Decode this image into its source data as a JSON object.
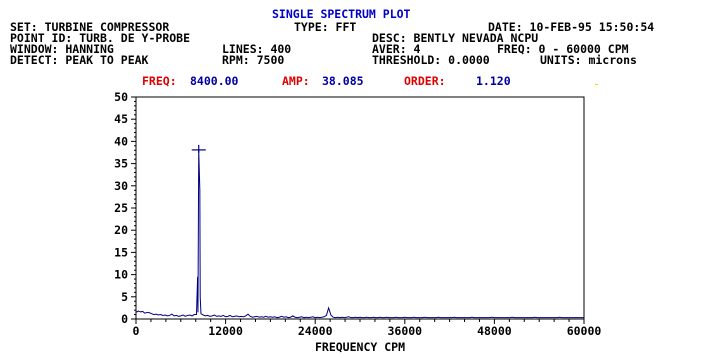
{
  "title": "SINGLE SPECTRUM PLOT",
  "header": {
    "set": "SET: TURBINE COMPRESSOR",
    "type": "TYPE: FFT",
    "date": "DATE: 10-FEB-95 15:50:54",
    "point_id": "POINT ID: TURB. DE Y-PROBE",
    "desc": "DESC: BENTLY NEVADA NCPU",
    "window": "WINDOW: HANNING",
    "lines": "LINES: 400",
    "aver": "AVER: 4",
    "freq_range": "FREQ: 0 - 60000 CPM",
    "detect": "DETECT: PEAK TO PEAK",
    "rpm": "RPM: 7500",
    "threshold": "THRESHOLD: 0.0000",
    "units": "UNITS: microns"
  },
  "cursor": {
    "freq_label": "FREQ:",
    "freq_value": "8400.00",
    "amp_label": "AMP:",
    "amp_value": "38.085",
    "order_label": "ORDER:",
    "order_value": "1.120"
  },
  "colors": {
    "title": "#0000c8",
    "trace": "#000080",
    "label_red": "#e00000",
    "value_blue": "#0000a0"
  },
  "chart_data": {
    "type": "line",
    "xlabel": "FREQUENCY CPM",
    "ylabel": "",
    "xlim": [
      0,
      60000
    ],
    "ylim": [
      0,
      50
    ],
    "x_ticks": [
      "0",
      "12000",
      "24000",
      "36000",
      "48000",
      "60000"
    ],
    "y_ticks": [
      "0",
      "5",
      "10",
      "15",
      "20",
      "25",
      "30",
      "35",
      "40",
      "45",
      "50"
    ],
    "grid": false,
    "cursor_marker": {
      "x": 8400,
      "y": 38.085
    },
    "series": [
      {
        "points": [
          [
            0,
            1.5
          ],
          [
            300,
            1.8
          ],
          [
            600,
            1.6
          ],
          [
            900,
            1.7
          ],
          [
            1200,
            1.3
          ],
          [
            1500,
            1.5
          ],
          [
            1800,
            1.4
          ],
          [
            2100,
            1.2
          ],
          [
            2400,
            1.0
          ],
          [
            2700,
            1.1
          ],
          [
            3000,
            0.9
          ],
          [
            3300,
            1.0
          ],
          [
            3600,
            0.8
          ],
          [
            3900,
            0.9
          ],
          [
            4200,
            0.7
          ],
          [
            4500,
            0.8
          ],
          [
            4800,
            1.1
          ],
          [
            5100,
            0.7
          ],
          [
            5400,
            0.8
          ],
          [
            5700,
            0.6
          ],
          [
            6000,
            0.7
          ],
          [
            6300,
            0.9
          ],
          [
            6600,
            0.6
          ],
          [
            6900,
            0.8
          ],
          [
            7200,
            0.9
          ],
          [
            7500,
            0.7
          ],
          [
            7800,
            1.0
          ],
          [
            8100,
            1.0
          ],
          [
            8250,
            9.5
          ],
          [
            8300,
            1.5
          ],
          [
            8400,
            38.085
          ],
          [
            8550,
            29
          ],
          [
            8600,
            5
          ],
          [
            8700,
            1.2
          ],
          [
            9000,
            0.9
          ],
          [
            9300,
            0.7
          ],
          [
            9600,
            0.8
          ],
          [
            9900,
            0.6
          ],
          [
            10200,
            0.7
          ],
          [
            10500,
            0.9
          ],
          [
            10800,
            0.6
          ],
          [
            11100,
            0.7
          ],
          [
            11400,
            0.6
          ],
          [
            11700,
            0.8
          ],
          [
            12000,
            0.5
          ],
          [
            12300,
            0.6
          ],
          [
            12600,
            0.8
          ],
          [
            12900,
            0.5
          ],
          [
            13200,
            0.6
          ],
          [
            13500,
            0.7
          ],
          [
            13800,
            0.5
          ],
          [
            14100,
            0.6
          ],
          [
            14400,
            0.5
          ],
          [
            14700,
            0.7
          ],
          [
            15000,
            1.1
          ],
          [
            15300,
            0.6
          ],
          [
            15600,
            0.4
          ],
          [
            15900,
            0.5
          ],
          [
            16200,
            0.6
          ],
          [
            16500,
            0.4
          ],
          [
            16800,
            0.5
          ],
          [
            17100,
            0.4
          ],
          [
            17400,
            0.6
          ],
          [
            17700,
            0.4
          ],
          [
            18000,
            0.5
          ],
          [
            18300,
            0.4
          ],
          [
            18600,
            0.5
          ],
          [
            18900,
            0.3
          ],
          [
            19200,
            0.4
          ],
          [
            19500,
            0.6
          ],
          [
            19800,
            0.4
          ],
          [
            20100,
            0.5
          ],
          [
            20400,
            0.3
          ],
          [
            20700,
            0.4
          ],
          [
            21000,
            0.7
          ],
          [
            21300,
            0.4
          ],
          [
            21600,
            0.3
          ],
          [
            21900,
            0.4
          ],
          [
            22200,
            0.5
          ],
          [
            22500,
            0.3
          ],
          [
            22800,
            0.4
          ],
          [
            23100,
            0.3
          ],
          [
            23400,
            0.4
          ],
          [
            23700,
            0.5
          ],
          [
            24000,
            0.3
          ],
          [
            24300,
            0.4
          ],
          [
            24600,
            0.3
          ],
          [
            24900,
            0.4
          ],
          [
            25200,
            0.5
          ],
          [
            25500,
            0.8
          ],
          [
            25800,
            2.5
          ],
          [
            26100,
            0.9
          ],
          [
            26400,
            0.4
          ],
          [
            26700,
            0.3
          ],
          [
            27000,
            0.4
          ],
          [
            27300,
            0.3
          ],
          [
            27600,
            0.4
          ],
          [
            27900,
            0.3
          ],
          [
            28200,
            0.4
          ],
          [
            28500,
            0.5
          ],
          [
            28800,
            0.3
          ],
          [
            29100,
            0.3
          ],
          [
            29400,
            0.4
          ],
          [
            29700,
            0.3
          ],
          [
            30000,
            0.4
          ],
          [
            30300,
            0.3
          ],
          [
            30600,
            0.3
          ],
          [
            30900,
            0.4
          ],
          [
            31200,
            0.3
          ],
          [
            31500,
            0.3
          ],
          [
            31800,
            0.4
          ],
          [
            32100,
            0.3
          ],
          [
            32400,
            0.3
          ],
          [
            32700,
            0.4
          ],
          [
            33000,
            0.3
          ],
          [
            33300,
            0.3
          ],
          [
            33600,
            0.4
          ],
          [
            33900,
            0.3
          ],
          [
            34200,
            0.3
          ],
          [
            34500,
            0.3
          ],
          [
            34800,
            0.4
          ],
          [
            35100,
            0.3
          ],
          [
            35400,
            0.3
          ],
          [
            35700,
            0.3
          ],
          [
            36000,
            0.4
          ],
          [
            36300,
            0.3
          ],
          [
            36600,
            0.3
          ],
          [
            36900,
            0.3
          ],
          [
            37200,
            0.4
          ],
          [
            37500,
            0.3
          ],
          [
            37800,
            0.3
          ],
          [
            38100,
            0.3
          ],
          [
            38400,
            0.3
          ],
          [
            38700,
            0.4
          ],
          [
            39000,
            0.3
          ],
          [
            39300,
            0.3
          ],
          [
            39600,
            0.3
          ],
          [
            39900,
            0.3
          ],
          [
            40200,
            0.3
          ],
          [
            40500,
            0.4
          ],
          [
            40800,
            0.3
          ],
          [
            41100,
            0.3
          ],
          [
            41400,
            0.3
          ],
          [
            41700,
            0.3
          ],
          [
            42000,
            0.3
          ],
          [
            42300,
            0.3
          ],
          [
            42600,
            0.4
          ],
          [
            42900,
            0.3
          ],
          [
            43200,
            0.3
          ],
          [
            43500,
            0.3
          ],
          [
            43800,
            0.3
          ],
          [
            44100,
            0.3
          ],
          [
            44400,
            0.3
          ],
          [
            44700,
            0.3
          ],
          [
            45000,
            0.4
          ],
          [
            45300,
            0.3
          ],
          [
            45600,
            0.3
          ],
          [
            45900,
            0.3
          ],
          [
            46200,
            0.3
          ],
          [
            46500,
            0.3
          ],
          [
            46800,
            0.3
          ],
          [
            47100,
            0.3
          ],
          [
            47400,
            0.3
          ],
          [
            47700,
            0.4
          ],
          [
            48000,
            0.3
          ],
          [
            48300,
            0.3
          ],
          [
            48600,
            0.3
          ],
          [
            48900,
            0.3
          ],
          [
            49200,
            0.3
          ],
          [
            49500,
            0.3
          ],
          [
            49800,
            0.3
          ],
          [
            50100,
            0.3
          ],
          [
            50400,
            0.4
          ],
          [
            50700,
            0.3
          ],
          [
            51000,
            0.3
          ],
          [
            51300,
            0.3
          ],
          [
            51600,
            0.3
          ],
          [
            51900,
            0.3
          ],
          [
            52200,
            0.3
          ],
          [
            52500,
            0.3
          ],
          [
            52800,
            0.3
          ],
          [
            53100,
            0.3
          ],
          [
            53400,
            0.4
          ],
          [
            53700,
            0.3
          ],
          [
            54000,
            0.3
          ],
          [
            54300,
            0.3
          ],
          [
            54600,
            0.3
          ],
          [
            54900,
            0.3
          ],
          [
            55200,
            0.3
          ],
          [
            55500,
            0.3
          ],
          [
            55800,
            0.3
          ],
          [
            56100,
            0.3
          ],
          [
            56400,
            0.3
          ],
          [
            56700,
            0.4
          ],
          [
            57000,
            0.3
          ],
          [
            57300,
            0.3
          ],
          [
            57600,
            0.3
          ],
          [
            57900,
            0.3
          ],
          [
            58200,
            0.3
          ],
          [
            58500,
            0.3
          ],
          [
            58800,
            0.3
          ],
          [
            59100,
            0.3
          ],
          [
            59400,
            0.3
          ],
          [
            59700,
            0.3
          ],
          [
            60000,
            0.3
          ]
        ]
      }
    ]
  }
}
